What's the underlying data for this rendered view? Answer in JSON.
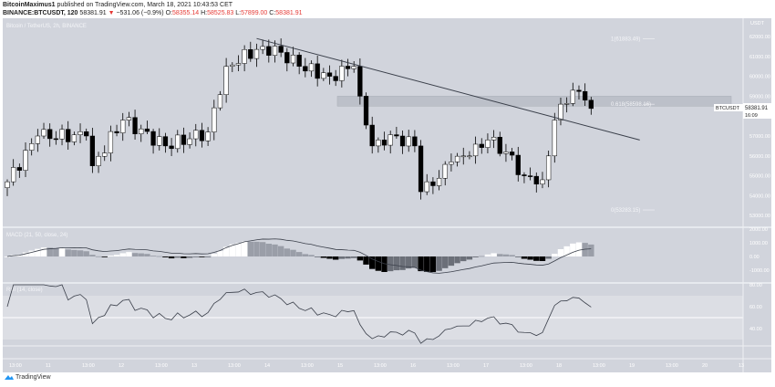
{
  "header": {
    "author": "BitcoinMaximus1",
    "published": "published on TradingView.com, March 18, 2021 10:43:53 CET",
    "symbol": "BINANCE:BTCUSDT, 120",
    "last": "58381.91",
    "change": "−531.06 (−0.9%)",
    "o_label": "O:",
    "o": "58355.14",
    "h_label": "H:",
    "h": "58525.83",
    "l_label": "L:",
    "l": "57899.00",
    "c_label": "C:",
    "c": "58381.91"
  },
  "footer": {
    "brand": "TradingView"
  },
  "colors": {
    "pane": "#d1d4dc",
    "band": "#dcdee4",
    "up": "#ffffff",
    "down": "#000000",
    "accent": "#e53935",
    "logo": "#2196f3"
  },
  "chart_data": {
    "type": "candlestick",
    "title": "Bitcoin / TetherUS, 2h, BINANCE",
    "currency": "USDT",
    "ylim": [
      52600,
      62400
    ],
    "price_ticks": [
      "62000.00",
      "61000.00",
      "60000.00",
      "59000.00",
      "57000.00",
      "56000.00",
      "55000.00",
      "54000.00",
      "53000.00"
    ],
    "price_tick_values": [
      62000,
      61000,
      60000,
      59000,
      57000,
      56000,
      55000,
      54000,
      53000
    ],
    "time_labels": [
      "13:00",
      "11",
      "13:00",
      "12",
      "13:00",
      "13",
      "13:00",
      "14",
      "13:00",
      "15",
      "13:00",
      "16",
      "13:00",
      "17",
      "13:00",
      "18",
      "13:00",
      "19",
      "13:00",
      "20",
      "13"
    ],
    "close_anchors": [
      [
        0,
        54700
      ],
      [
        5,
        57000
      ],
      [
        13,
        57000
      ],
      [
        14,
        55500
      ],
      [
        19,
        57800
      ],
      [
        26,
        56500
      ],
      [
        33,
        57200
      ],
      [
        36,
        60500
      ],
      [
        42,
        61500
      ],
      [
        45,
        61200
      ],
      [
        48,
        60500
      ],
      [
        53,
        60000
      ],
      [
        57,
        60500
      ],
      [
        58,
        59000
      ],
      [
        60,
        56500
      ],
      [
        61,
        56800
      ],
      [
        64,
        57000
      ],
      [
        67,
        56500
      ],
      [
        68,
        54200
      ],
      [
        70,
        54500
      ],
      [
        73,
        55700
      ],
      [
        76,
        56000
      ],
      [
        79,
        56800
      ],
      [
        82,
        56200
      ],
      [
        85,
        55000
      ],
      [
        88,
        54800
      ],
      [
        89,
        56000
      ],
      [
        90,
        57800
      ],
      [
        91,
        58600
      ],
      [
        93,
        59300
      ],
      [
        95,
        58800
      ],
      [
        96,
        58381.91
      ]
    ],
    "price_label": {
      "symbol": "BTCUSDT",
      "price": "58381.91",
      "countdown": "16:09"
    },
    "fib_levels": [
      {
        "label": "1(61883.49)",
        "value": 61883.49
      },
      {
        "label": "0.618(58598.16)",
        "value": 58598.16
      },
      {
        "label": "0(53283.15)",
        "value": 53283.15
      }
    ],
    "resistance_zone": [
      58500,
      59000
    ],
    "trendline": {
      "from": [
        41,
        61900
      ],
      "to": [
        104,
        56800
      ]
    },
    "macd": {
      "label": "MACD (21, 50, close, 24)",
      "ticks": [
        "2000.00",
        "1000.00",
        "0.00",
        "-1000.00"
      ],
      "tick_values": [
        2000,
        1000,
        0,
        -1000
      ]
    },
    "rsi": {
      "label": "RSI (14, close)",
      "ticks": [
        "80.00",
        "60.00",
        "40.00"
      ],
      "tick_values": [
        80,
        60,
        40
      ],
      "band": [
        30,
        70
      ]
    }
  }
}
